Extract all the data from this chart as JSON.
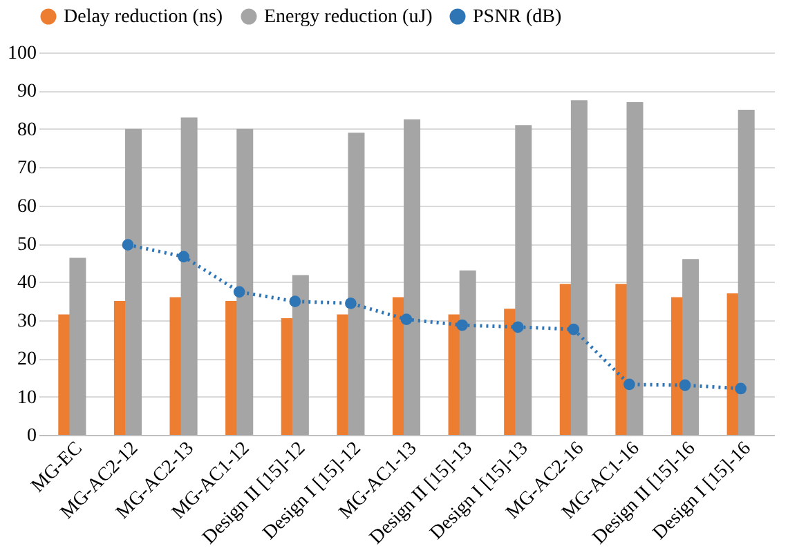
{
  "chart_data": {
    "type": "bar",
    "categories": [
      "MG-EC",
      "MG-AC2-12",
      "MG-AC2-13",
      "MG-AC1-12",
      "Design II [15]-12",
      "Design I [15]-12",
      "MG-AC1-13",
      "Design II [15]-13",
      "Design I [15]-13",
      "MG-AC2-16",
      "MG-AC1-16",
      "Design II [15]-16",
      "Design I [15]-16"
    ],
    "series": [
      {
        "name": "Delay reduction (ns)",
        "color": "#ed7d31",
        "values": [
          31.5,
          35,
          36,
          35,
          30.5,
          31.5,
          36,
          31.5,
          33,
          39.5,
          39.5,
          36,
          37
        ]
      },
      {
        "name": "Energy reduction (uJ)",
        "color": "#a5a5a5",
        "values": [
          46.3,
          80,
          83,
          80,
          41.8,
          79,
          82.5,
          43,
          81,
          87.5,
          87,
          46,
          85
        ]
      },
      {
        "name": "PSNR (dB)",
        "color": "#2e75b6",
        "type": "line",
        "marker": "circle",
        "line_style": "dotted",
        "values": [
          null,
          49.7,
          46.6,
          37.4,
          34.9,
          34.4,
          30.2,
          28.7,
          28.2,
          27.6,
          13.2,
          13,
          12.1
        ]
      }
    ],
    "ylim": [
      0,
      100
    ],
    "yticks": [
      0,
      10,
      20,
      30,
      40,
      50,
      60,
      70,
      80,
      90,
      100
    ],
    "grid": "y",
    "legend": "top"
  }
}
